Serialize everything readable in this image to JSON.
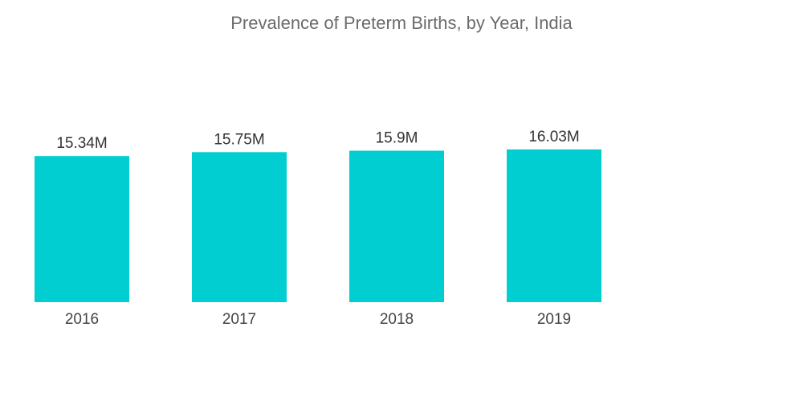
{
  "chart_data": {
    "type": "bar",
    "title": "Prevalence of Preterm Births, by Year, India",
    "xlabel": "",
    "ylabel": "",
    "categories": [
      "2016",
      "2017",
      "2018",
      "2019"
    ],
    "values": [
      15.34,
      15.75,
      15.9,
      16.03
    ],
    "value_labels": [
      "15.34M",
      "15.75M",
      "15.9M",
      "16.03M"
    ],
    "ylim": [
      0,
      16.03
    ],
    "grid": false,
    "legend": "none",
    "bar_color": "#00CED1"
  }
}
